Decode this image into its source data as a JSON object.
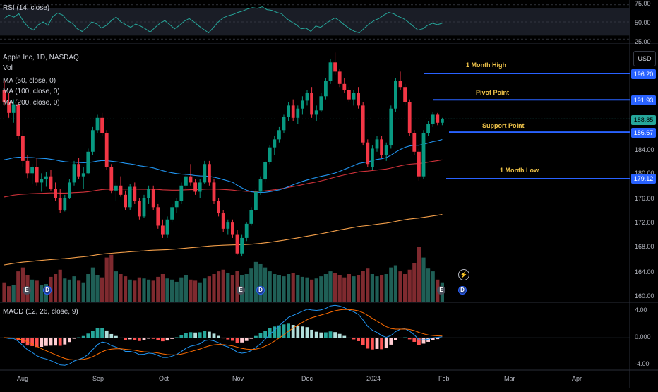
{
  "rsi": {
    "title": "RSI (14, close)",
    "levels": [
      "75.00",
      "50.00",
      "25.00"
    ],
    "values": [
      55,
      60,
      57,
      62,
      50,
      42,
      38,
      46,
      50,
      45,
      58,
      63,
      60,
      52,
      48,
      40,
      36,
      42,
      50,
      47,
      41,
      45,
      52,
      57,
      50,
      46,
      42,
      47,
      44,
      40,
      35,
      42,
      48,
      52,
      46,
      40,
      45,
      51,
      55,
      50,
      44,
      39,
      34,
      42,
      50,
      56,
      59,
      61,
      64,
      66,
      69,
      71,
      70,
      72,
      68,
      67,
      64,
      62,
      55,
      50,
      46,
      40,
      41,
      36,
      44,
      42,
      47,
      52,
      56,
      51,
      45,
      40,
      36,
      34,
      41,
      47,
      52,
      55,
      60,
      64,
      62,
      58,
      55,
      50,
      44,
      38,
      40,
      45,
      48,
      46,
      48
    ]
  },
  "main": {
    "symbol_line": "Apple Inc, 1D, NASDAQ",
    "indicators": [
      "Vol",
      "MA (50, close, 0)",
      "MA (100, close, 0)",
      "MA (200, close, 0)"
    ],
    "currency": "USD",
    "y_ticks": [
      "184.00",
      "180.00",
      "176.00",
      "172.00",
      "168.00",
      "164.00",
      "160.00"
    ],
    "price_badges": [
      "196.20",
      "191.93",
      "188.85",
      "186.67",
      "179.12"
    ],
    "annotations": [
      "1 Month High",
      "Pivot Point",
      "Support Point",
      "1 Month Low"
    ],
    "levels": {
      "high": 196.2,
      "pivot": 191.93,
      "support": 186.67,
      "low": 179.12
    },
    "event_markers": [
      "E",
      "D",
      "E",
      "D",
      "E",
      "D"
    ]
  },
  "macd": {
    "title": "MACD (12, 26, close, 9)",
    "y_ticks": [
      "4.00",
      "0.000",
      "-4.00"
    ]
  },
  "x_axis": [
    "Aug",
    "Sep",
    "Oct",
    "Nov",
    "Dec",
    "2024",
    "Feb",
    "Mar",
    "Apr"
  ],
  "colors": {
    "up": "#089981",
    "down": "#f23645",
    "vol_up": "#1f5f56",
    "vol_down": "#7f2a2f",
    "ma50": "#2196f3",
    "ma100": "#d0323a",
    "ma200": "#f5a04a",
    "level_line": "#2962ff",
    "rsi_line": "#26a69a",
    "macd_line": "#2196f3",
    "signal_line": "#ff6d00"
  },
  "chart_data": {
    "type": "candlestick",
    "title": "Apple Inc, 1D, NASDAQ",
    "ylim": [
      158,
      200
    ],
    "ohlc": [
      [
        193.5,
        195.0,
        191.0,
        191.5
      ],
      [
        191.5,
        193.0,
        189.0,
        189.8
      ],
      [
        189.8,
        192.0,
        188.2,
        191.2
      ],
      [
        191.2,
        191.5,
        185.5,
        186.0
      ],
      [
        186.0,
        187.0,
        181.0,
        182.0
      ],
      [
        182.0,
        183.0,
        179.2,
        180.0
      ],
      [
        180.0,
        181.5,
        178.3,
        181.0
      ],
      [
        181.0,
        182.5,
        178.0,
        178.5
      ],
      [
        178.5,
        180.0,
        177.0,
        179.0
      ],
      [
        179.0,
        180.2,
        177.8,
        179.5
      ],
      [
        179.5,
        180.5,
        177.2,
        177.5
      ],
      [
        177.5,
        178.5,
        175.5,
        176.0
      ],
      [
        176.0,
        177.5,
        173.5,
        174.0
      ],
      [
        174.0,
        176.5,
        173.8,
        176.0
      ],
      [
        176.0,
        179.0,
        175.8,
        178.5
      ],
      [
        178.5,
        182.0,
        178.0,
        181.5
      ],
      [
        181.5,
        182.5,
        179.0,
        179.5
      ],
      [
        179.5,
        181.0,
        177.5,
        180.0
      ],
      [
        180.0,
        184.0,
        179.8,
        183.5
      ],
      [
        183.5,
        187.5,
        183.0,
        187.0
      ],
      [
        187.0,
        189.5,
        186.5,
        189.0
      ],
      [
        189.0,
        189.8,
        186.0,
        186.5
      ],
      [
        186.5,
        187.0,
        180.5,
        181.0
      ],
      [
        181.0,
        181.5,
        176.8,
        177.2
      ],
      [
        177.2,
        178.5,
        175.5,
        178.0
      ],
      [
        178.0,
        179.5,
        176.2,
        176.5
      ],
      [
        176.5,
        177.2,
        174.0,
        174.5
      ],
      [
        174.5,
        178.2,
        174.0,
        177.8
      ],
      [
        177.8,
        178.5,
        175.0,
        175.5
      ],
      [
        175.5,
        176.0,
        172.5,
        173.0
      ],
      [
        173.0,
        176.5,
        172.8,
        176.0
      ],
      [
        176.0,
        178.0,
        175.0,
        177.5
      ],
      [
        177.5,
        178.0,
        174.0,
        174.5
      ],
      [
        174.5,
        175.0,
        171.0,
        171.5
      ],
      [
        171.5,
        172.5,
        169.5,
        170.0
      ],
      [
        170.0,
        173.0,
        169.5,
        172.5
      ],
      [
        172.5,
        175.0,
        172.0,
        174.5
      ],
      [
        174.5,
        176.0,
        173.5,
        175.5
      ],
      [
        175.5,
        178.5,
        175.0,
        178.0
      ],
      [
        178.0,
        180.0,
        177.5,
        179.5
      ],
      [
        179.5,
        181.5,
        178.0,
        178.5
      ],
      [
        178.5,
        179.0,
        176.5,
        177.0
      ],
      [
        177.0,
        179.0,
        176.0,
        178.5
      ],
      [
        178.5,
        182.0,
        178.2,
        181.5
      ],
      [
        181.5,
        182.0,
        178.0,
        178.5
      ],
      [
        178.5,
        179.0,
        175.0,
        175.5
      ],
      [
        175.5,
        176.0,
        173.0,
        173.5
      ],
      [
        173.5,
        174.0,
        170.5,
        171.0
      ],
      [
        171.0,
        172.5,
        170.0,
        172.0
      ],
      [
        172.0,
        172.5,
        169.5,
        170.0
      ],
      [
        170.0,
        170.8,
        166.8,
        167.0
      ],
      [
        167.0,
        170.0,
        166.5,
        169.5
      ],
      [
        169.5,
        172.0,
        169.0,
        171.8
      ],
      [
        171.8,
        174.5,
        171.5,
        174.0
      ],
      [
        174.0,
        177.5,
        173.8,
        177.0
      ],
      [
        177.0,
        179.5,
        176.5,
        179.0
      ],
      [
        179.0,
        182.0,
        178.5,
        181.8
      ],
      [
        181.8,
        184.5,
        181.5,
        184.2
      ],
      [
        184.2,
        186.0,
        183.0,
        185.5
      ],
      [
        185.5,
        187.5,
        185.0,
        187.0
      ],
      [
        187.0,
        189.5,
        186.5,
        189.2
      ],
      [
        189.2,
        191.5,
        188.5,
        191.0
      ],
      [
        191.0,
        192.0,
        188.5,
        189.0
      ],
      [
        189.0,
        191.0,
        188.0,
        190.5
      ],
      [
        190.5,
        192.5,
        189.5,
        191.8
      ],
      [
        191.8,
        193.5,
        191.0,
        193.0
      ],
      [
        193.0,
        194.0,
        189.0,
        189.5
      ],
      [
        189.5,
        191.0,
        188.5,
        190.2
      ],
      [
        190.2,
        193.0,
        190.0,
        192.5
      ],
      [
        192.5,
        195.5,
        192.0,
        195.0
      ],
      [
        195.0,
        198.5,
        194.5,
        198.0
      ],
      [
        198.0,
        199.6,
        196.0,
        196.5
      ],
      [
        196.5,
        197.0,
        194.0,
        194.5
      ],
      [
        194.5,
        195.5,
        193.0,
        193.5
      ],
      [
        193.5,
        194.0,
        191.5,
        192.0
      ],
      [
        192.0,
        193.5,
        191.0,
        193.0
      ],
      [
        193.0,
        194.0,
        190.5,
        191.0
      ],
      [
        191.0,
        191.5,
        184.5,
        185.0
      ],
      [
        185.0,
        185.5,
        181.0,
        181.5
      ],
      [
        181.0,
        184.5,
        180.5,
        184.0
      ],
      [
        184.0,
        186.0,
        183.5,
        185.5
      ],
      [
        185.5,
        186.0,
        182.5,
        183.0
      ],
      [
        183.0,
        185.0,
        182.0,
        184.5
      ],
      [
        184.5,
        191.0,
        184.0,
        190.5
      ],
      [
        190.5,
        195.5,
        190.0,
        195.0
      ],
      [
        195.0,
        196.5,
        193.5,
        194.0
      ],
      [
        194.0,
        194.5,
        191.0,
        191.5
      ],
      [
        191.5,
        192.0,
        186.0,
        186.5
      ],
      [
        186.5,
        187.0,
        183.0,
        183.5
      ],
      [
        183.5,
        184.0,
        178.8,
        179.5
      ],
      [
        179.5,
        187.0,
        179.0,
        186.5
      ],
      [
        186.5,
        188.5,
        186.0,
        188.0
      ],
      [
        188.0,
        190.0,
        187.5,
        189.5
      ],
      [
        189.5,
        189.8,
        187.8,
        188.2
      ],
      [
        188.2,
        189.0,
        187.8,
        188.85
      ]
    ],
    "volume": [
      0.35,
      0.28,
      0.3,
      0.55,
      0.62,
      0.48,
      0.4,
      0.38,
      0.3,
      0.32,
      0.45,
      0.5,
      0.58,
      0.42,
      0.4,
      0.46,
      0.38,
      0.35,
      0.5,
      0.62,
      0.48,
      0.44,
      0.8,
      0.85,
      0.55,
      0.5,
      0.46,
      0.4,
      0.38,
      0.44,
      0.42,
      0.4,
      0.38,
      0.45,
      0.5,
      0.42,
      0.4,
      0.36,
      0.44,
      0.48,
      0.4,
      0.38,
      0.35,
      0.42,
      0.46,
      0.5,
      0.55,
      0.58,
      0.52,
      0.48,
      0.56,
      0.48,
      0.5,
      0.6,
      0.72,
      0.68,
      0.62,
      0.55,
      0.5,
      0.48,
      0.46,
      0.5,
      0.52,
      0.48,
      0.45,
      0.44,
      0.4,
      0.42,
      0.46,
      0.5,
      0.55,
      0.52,
      0.48,
      0.44,
      0.5,
      0.46,
      0.48,
      0.56,
      0.6,
      0.5,
      0.46,
      0.48,
      0.5,
      0.62,
      0.66,
      0.55,
      0.5,
      0.58,
      0.7,
      1.0,
      0.8,
      0.6,
      0.55,
      0.4,
      0.35
    ]
  }
}
